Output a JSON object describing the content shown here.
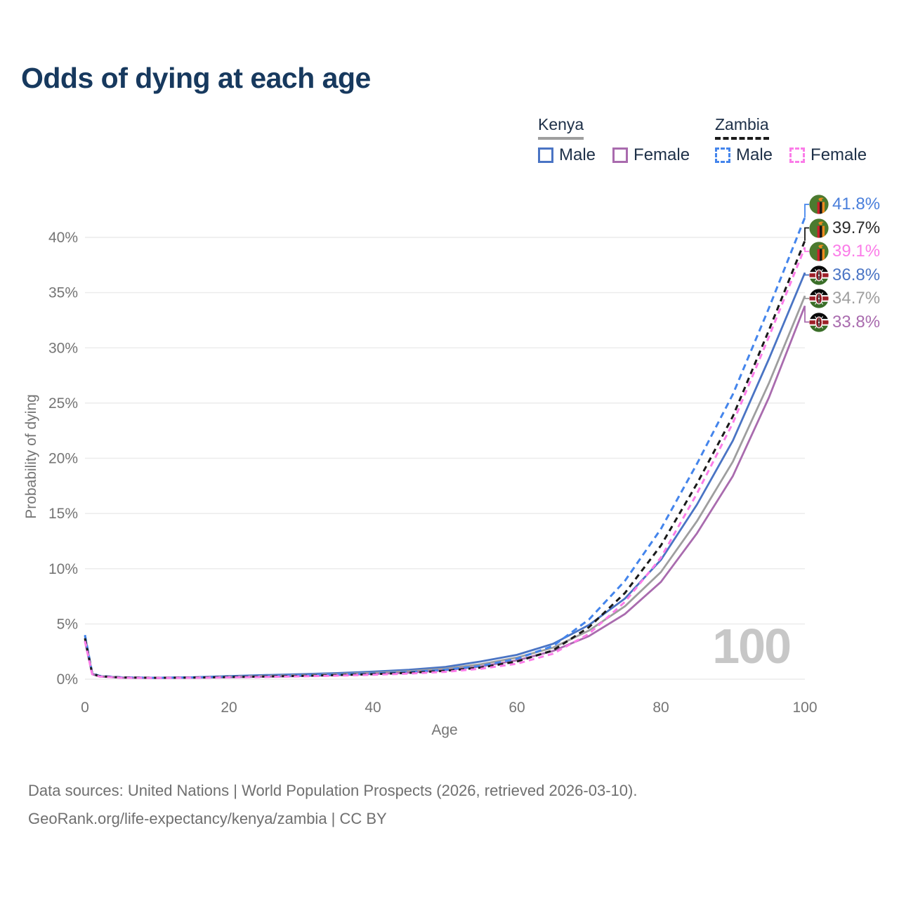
{
  "title": "Odds of dying at each age",
  "legend": {
    "groups": [
      {
        "name": "Kenya",
        "line_style": "solid",
        "underline_color": "#9e9e9e",
        "items": [
          {
            "label": "Male",
            "color": "#4a74c4"
          },
          {
            "label": "Female",
            "color": "#a96bae"
          }
        ]
      },
      {
        "name": "Zambia",
        "line_style": "dashed",
        "underline_color": "#1a1a1a",
        "items": [
          {
            "label": "Male",
            "color": "#4485ec"
          },
          {
            "label": "Female",
            "color": "#fb7ce8"
          }
        ]
      }
    ]
  },
  "chart_data": {
    "type": "line",
    "title": "Odds of dying at each age",
    "xlabel": "Age",
    "ylabel": "Probability of dying",
    "x_ticks": [
      0,
      20,
      40,
      60,
      80,
      100
    ],
    "y_ticks": [
      0,
      5,
      10,
      15,
      20,
      25,
      30,
      35,
      40
    ],
    "y_tick_suffix": "%",
    "xlim": [
      0,
      100
    ],
    "ylim": [
      0,
      45
    ],
    "grid": "horizontal",
    "watermark": "100",
    "x": [
      0,
      1,
      2,
      5,
      10,
      15,
      20,
      25,
      30,
      35,
      40,
      45,
      50,
      55,
      60,
      65,
      70,
      75,
      80,
      85,
      90,
      95,
      100
    ],
    "series": [
      {
        "id": "zambia-male",
        "name": "Zambia Male",
        "country": "Zambia",
        "sex": "Male",
        "color": "#4485ec",
        "dash": "9 6",
        "end_label": "41.8%",
        "label_color": "#4a7fdb",
        "flag": "zambia",
        "values": [
          4.0,
          0.55,
          0.3,
          0.17,
          0.13,
          0.16,
          0.22,
          0.28,
          0.35,
          0.43,
          0.52,
          0.65,
          0.85,
          1.2,
          1.85,
          3.0,
          5.4,
          8.9,
          13.6,
          19.5,
          25.8,
          33.6,
          41.8
        ]
      },
      {
        "id": "zambia-both",
        "name": "Zambia",
        "country": "Zambia",
        "sex": "Both",
        "color": "#1a1a1a",
        "dash": "8 6",
        "end_label": "39.7%",
        "label_color": "#2b2b2b",
        "flag": "zambia",
        "values": [
          3.7,
          0.5,
          0.27,
          0.15,
          0.12,
          0.14,
          0.19,
          0.24,
          0.3,
          0.37,
          0.45,
          0.57,
          0.75,
          1.05,
          1.6,
          2.6,
          4.7,
          7.8,
          12.1,
          17.7,
          23.8,
          31.6,
          39.7
        ]
      },
      {
        "id": "zambia-female",
        "name": "Zambia Female",
        "country": "Zambia",
        "sex": "Female",
        "color": "#fb7ce8",
        "dash": "8 6",
        "end_label": "39.1%",
        "label_color": "#fb7ce8",
        "flag": "zambia",
        "values": [
          3.45,
          0.45,
          0.24,
          0.13,
          0.11,
          0.13,
          0.16,
          0.2,
          0.26,
          0.32,
          0.4,
          0.5,
          0.66,
          0.95,
          1.4,
          2.3,
          4.1,
          7.0,
          11.0,
          16.8,
          23.2,
          31.0,
          39.1
        ]
      },
      {
        "id": "kenya-male",
        "name": "Kenya Male",
        "country": "Kenya",
        "sex": "Male",
        "color": "#4a74c4",
        "dash": null,
        "end_label": "36.8%",
        "label_color": "#4a74c4",
        "flag": "kenya",
        "values": [
          3.9,
          0.5,
          0.28,
          0.16,
          0.13,
          0.17,
          0.28,
          0.37,
          0.45,
          0.55,
          0.68,
          0.85,
          1.1,
          1.6,
          2.2,
          3.2,
          4.9,
          7.3,
          10.8,
          15.8,
          21.6,
          29.0,
          36.8
        ]
      },
      {
        "id": "kenya-both",
        "name": "Kenya",
        "country": "Kenya",
        "sex": "Both",
        "color": "#9e9e9e",
        "dash": null,
        "end_label": "34.7%",
        "label_color": "#9e9e9e",
        "flag": "kenya",
        "values": [
          3.65,
          0.48,
          0.26,
          0.15,
          0.12,
          0.15,
          0.22,
          0.3,
          0.37,
          0.46,
          0.57,
          0.72,
          0.95,
          1.35,
          1.95,
          2.85,
          4.4,
          6.6,
          9.7,
          14.3,
          19.7,
          26.8,
          34.7
        ]
      },
      {
        "id": "kenya-female",
        "name": "Kenya Female",
        "country": "Kenya",
        "sex": "Female",
        "color": "#a96bae",
        "dash": null,
        "end_label": "33.8%",
        "label_color": "#a96bae",
        "flag": "kenya",
        "values": [
          3.4,
          0.45,
          0.24,
          0.13,
          0.11,
          0.13,
          0.17,
          0.22,
          0.28,
          0.36,
          0.47,
          0.6,
          0.8,
          1.15,
          1.7,
          2.55,
          3.9,
          5.9,
          8.8,
          13.2,
          18.4,
          25.5,
          33.8
        ]
      }
    ]
  },
  "footer": {
    "line1": "Data sources: United Nations | World Population Prospects (2026, retrieved 2026-03-10).",
    "line2": "GeoRank.org/life-expectancy/kenya/zambia | CC BY"
  },
  "colors": {
    "title": "#17395e",
    "axis_text": "#757575",
    "gridline": "#ececec",
    "watermark": "#c7c7c7"
  }
}
